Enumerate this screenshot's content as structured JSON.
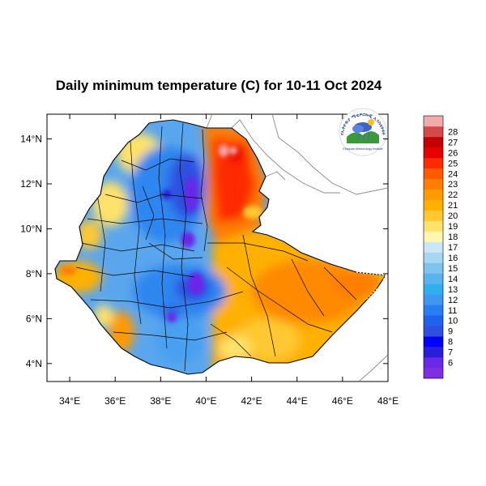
{
  "title": "Daily minimum temperature (C) for 10-11 Oct 2024",
  "logo": {
    "arc_text": "የኢትዮጵያ ሜቲዎሮሎጂ ኢንስቲትዩት",
    "caption": "Ethiopian Meteorology Institute"
  },
  "map": {
    "lon_range": [
      33,
      48
    ],
    "lat_range": [
      3.2,
      15.1
    ],
    "lon_ticks": [
      {
        "value": 34,
        "label": "34°E"
      },
      {
        "value": 36,
        "label": "36°E"
      },
      {
        "value": 38,
        "label": "38°E"
      },
      {
        "value": 40,
        "label": "40°E"
      },
      {
        "value": 42,
        "label": "42°E"
      },
      {
        "value": 44,
        "label": "44°E"
      },
      {
        "value": 46,
        "label": "46°E"
      },
      {
        "value": 48,
        "label": "48°E"
      }
    ],
    "lat_ticks": [
      {
        "value": 4,
        "label": "4°N"
      },
      {
        "value": 6,
        "label": "6°N"
      },
      {
        "value": 8,
        "label": "8°N"
      },
      {
        "value": 10,
        "label": "10°N"
      },
      {
        "value": 12,
        "label": "12°N"
      },
      {
        "value": 14,
        "label": "14°N"
      }
    ]
  },
  "colorbar": {
    "levels": [
      {
        "label": "",
        "color": "#7f2fe0"
      },
      {
        "label": "6",
        "color": "#6a28e8"
      },
      {
        "label": "7",
        "color": "#2a1fd8"
      },
      {
        "label": "8",
        "color": "#0000ff"
      },
      {
        "label": "9",
        "color": "#2f4fe0"
      },
      {
        "label": "10",
        "color": "#1e62ee"
      },
      {
        "label": "11",
        "color": "#2a7ef4"
      },
      {
        "label": "12",
        "color": "#3e98f2"
      },
      {
        "label": "13",
        "color": "#2fb0ee"
      },
      {
        "label": "14",
        "color": "#58b4ee"
      },
      {
        "label": "15",
        "color": "#7ec4ee"
      },
      {
        "label": "16",
        "color": "#a6d6f2"
      },
      {
        "label": "17",
        "color": "#c9e7f7"
      },
      {
        "label": "18",
        "color": "#fff6b0"
      },
      {
        "label": "19",
        "color": "#ffe26a"
      },
      {
        "label": "20",
        "color": "#ffc830"
      },
      {
        "label": "21",
        "color": "#ffb000"
      },
      {
        "label": "22",
        "color": "#ff9a00"
      },
      {
        "label": "23",
        "color": "#ff7e00"
      },
      {
        "label": "24",
        "color": "#ff5a00"
      },
      {
        "label": "25",
        "color": "#ff2a00"
      },
      {
        "label": "26",
        "color": "#e80000"
      },
      {
        "label": "27",
        "color": "#c40000"
      },
      {
        "label": "28",
        "color": "#d44a4a"
      },
      {
        "label": "",
        "color": "#f4aaaa"
      }
    ]
  }
}
